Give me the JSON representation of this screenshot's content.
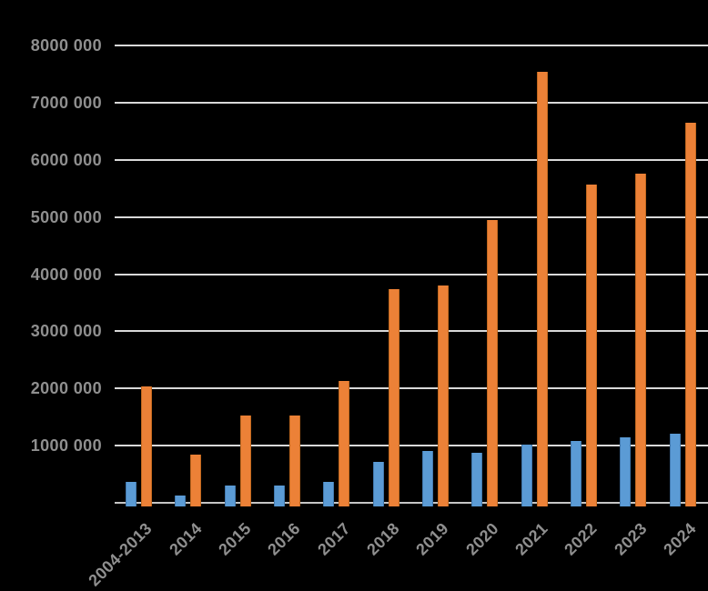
{
  "chart_background": "#000000",
  "chart_data": {
    "type": "bar",
    "title": "",
    "xlabel": "",
    "ylabel": "",
    "legend": "none",
    "grid": true,
    "gridline_color": "#D9D9D9",
    "axisline_color": "#C6C6C6",
    "tick_label_color": "#8F8F8F",
    "ylim": [
      0,
      8000000
    ],
    "ytick_step": 1000000,
    "yticks": [
      {
        "value": 1000000,
        "label": "1000 000"
      },
      {
        "value": 2000000,
        "label": "2000 000"
      },
      {
        "value": 3000000,
        "label": "3000 000"
      },
      {
        "value": 4000000,
        "label": "4000 000"
      },
      {
        "value": 5000000,
        "label": "5000 000"
      },
      {
        "value": 6000000,
        "label": "6000 000"
      },
      {
        "value": 7000000,
        "label": "7000 000"
      },
      {
        "value": 8000000,
        "label": "8000 000"
      }
    ],
    "categories": [
      "2004-2013",
      "2014",
      "2015",
      "2016",
      "2017",
      "2018",
      "2019",
      "2020",
      "2021",
      "2022",
      "2023",
      "2024"
    ],
    "series": [
      {
        "name": "series-blue",
        "color": "#5B9BD5",
        "edge_color": "#4379AD",
        "values": [
          360000,
          130000,
          300000,
          300000,
          360000,
          720000,
          900000,
          880000,
          1020000,
          1080000,
          1150000,
          1210000
        ]
      },
      {
        "name": "series-orange",
        "color": "#EC8137",
        "edge_color": "#C2691F",
        "values": [
          2040000,
          840000,
          1520000,
          1520000,
          2130000,
          3730000,
          3800000,
          4950000,
          7540000,
          5570000,
          5760000,
          6650000
        ]
      }
    ]
  }
}
